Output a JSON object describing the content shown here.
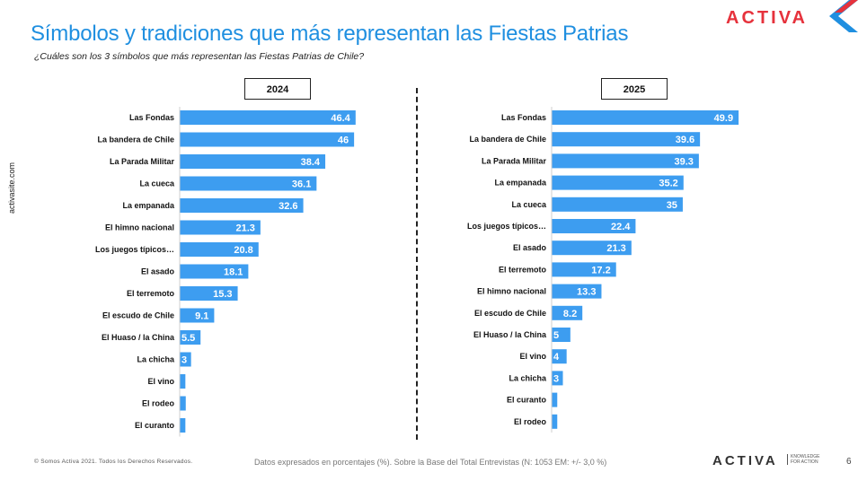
{
  "header": {
    "title": "Símbolos y tradiciones que más representan las Fiestas Patrias",
    "subtitle": "¿Cuáles son los 3 símbolos que más representan las Fiestas Patrias de Chile?",
    "brand": "ACTIVA"
  },
  "side_caption": "activasite.com",
  "footer": {
    "copyright": "© Somos Activa 2021. Todos los Derechos Reservados.",
    "note": "Datos expresados en porcentajes (%). Sobre la Base del Total Entrevistas (N: 1053  EM: +/- 3,0 %)",
    "brand": "ACTIVA",
    "tagline_1": "KNOWLEDGE",
    "tagline_2": "FOR ACTION",
    "page": "6"
  },
  "colors": {
    "bar": "#3d9df0",
    "title": "#1f8fe0",
    "brand_red": "#e6323c"
  },
  "chart_data": [
    {
      "type": "bar",
      "orientation": "horizontal",
      "title": "2024",
      "categories": [
        "Las Fondas",
        "La bandera de Chile",
        "La Parada Militar",
        "La cueca",
        "La empanada",
        "El himno nacional",
        "Los juegos típicos…",
        "El asado",
        "El terremoto",
        "El escudo de Chile",
        "El Huaso / la China",
        "La chicha",
        "El vino",
        "El rodeo",
        "El curanto"
      ],
      "values": [
        46.4,
        46,
        38.4,
        36.1,
        32.6,
        21.3,
        20.8,
        18.1,
        15.3,
        9.1,
        5.5,
        3,
        1.5,
        1.6,
        1.5
      ],
      "data_labels": [
        "46.4",
        "46",
        "38.4",
        "36.1",
        "32.6",
        "21.3",
        "20.8",
        "18.1",
        "15.3",
        "9.1",
        "5.5",
        "3",
        "",
        "",
        ""
      ]
    },
    {
      "type": "bar",
      "orientation": "horizontal",
      "title": "2025",
      "categories": [
        "Las Fondas",
        "La bandera de Chile",
        "La Parada Militar",
        "La empanada",
        "La cueca",
        "Los juegos típicos…",
        "El asado",
        "El terremoto",
        "El himno nacional",
        "El escudo de Chile",
        "El Huaso / la China",
        "El vino",
        "La chicha",
        "El curanto",
        "El rodeo"
      ],
      "values": [
        49.9,
        39.6,
        39.3,
        35.2,
        35,
        22.4,
        21.3,
        17.2,
        13.3,
        8.2,
        5,
        4,
        3,
        1.5,
        1.5
      ],
      "data_labels": [
        "49.9",
        "39.6",
        "39.3",
        "35.2",
        "35",
        "22.4",
        "21.3",
        "17.2",
        "13.3",
        "8.2",
        "5",
        "4",
        "3",
        "",
        ""
      ]
    }
  ]
}
